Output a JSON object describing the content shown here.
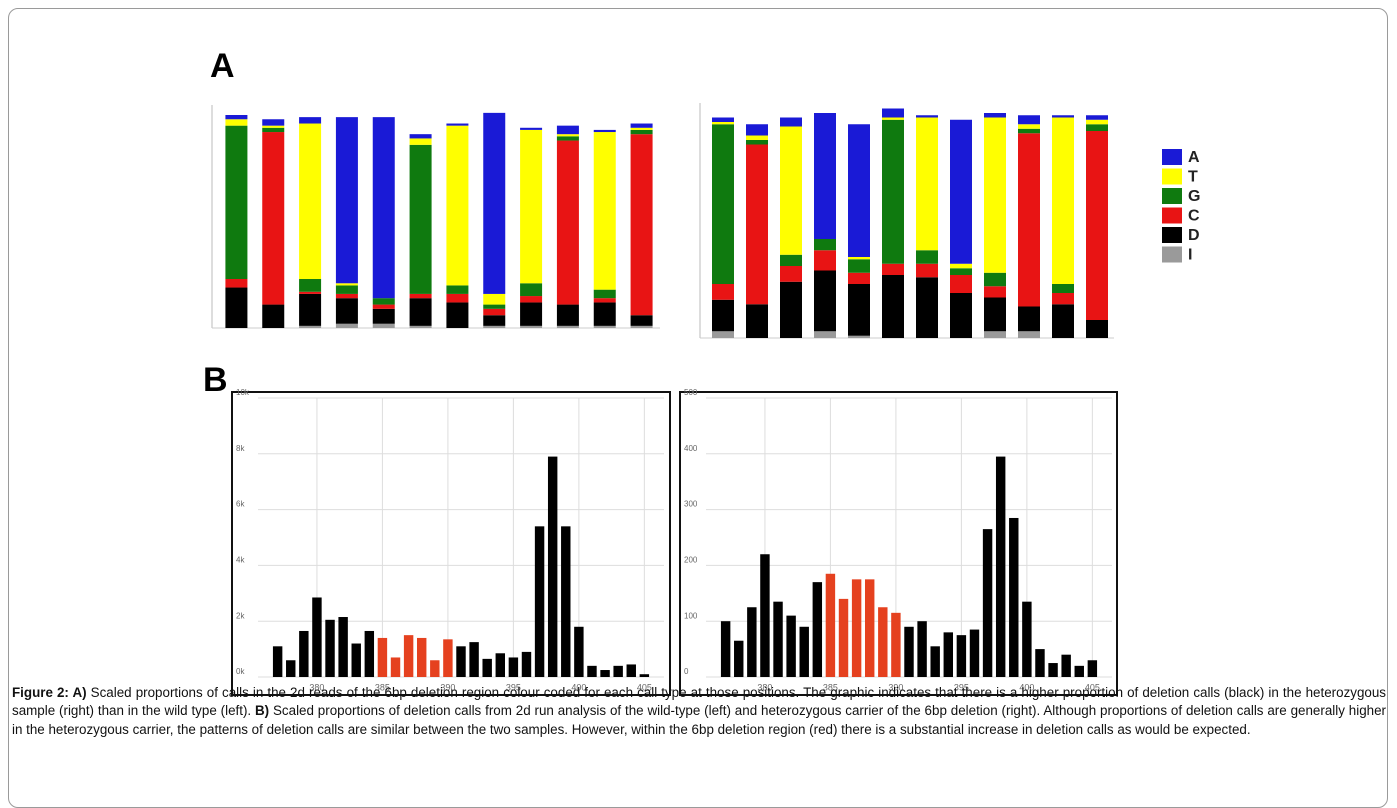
{
  "panel_labels": [
    "A",
    "B"
  ],
  "chart_data": [
    {
      "type": "stacked_bar",
      "categories": [
        null,
        null,
        null,
        null,
        null,
        null,
        null,
        null,
        null,
        null,
        null,
        null
      ],
      "ylim": [
        0,
        1
      ],
      "series": [
        {
          "color": "#1a1ad6",
          "values": [
            0.02,
            0.03,
            0.03,
            0.78,
            0.85,
            0.02,
            0.01,
            0.85,
            0.01,
            0.04,
            0.01,
            0.02
          ]
        },
        {
          "color": "#ffff00",
          "values": [
            0.03,
            0.01,
            0.73,
            0.01,
            0.0,
            0.03,
            0.75,
            0.05,
            0.72,
            0.01,
            0.74,
            0.01
          ]
        },
        {
          "color": "#0f7a0f",
          "values": [
            0.72,
            0.02,
            0.06,
            0.04,
            0.03,
            0.7,
            0.04,
            0.02,
            0.06,
            0.02,
            0.04,
            0.02
          ]
        },
        {
          "color": "#e81414",
          "values": [
            0.04,
            0.81,
            0.01,
            0.02,
            0.02,
            0.02,
            0.04,
            0.03,
            0.03,
            0.77,
            0.02,
            0.85
          ]
        },
        {
          "color": "#000000",
          "values": [
            0.19,
            0.11,
            0.15,
            0.12,
            0.07,
            0.13,
            0.12,
            0.05,
            0.11,
            0.1,
            0.11,
            0.05
          ]
        },
        {
          "color": "#9a9a9a",
          "values": [
            0,
            0,
            0.01,
            0.02,
            0.02,
            0.01,
            0,
            0.01,
            0.01,
            0.01,
            0.01,
            0.01
          ]
        }
      ]
    },
    {
      "type": "stacked_bar",
      "categories": [
        null,
        null,
        null,
        null,
        null,
        null,
        null,
        null,
        null,
        null,
        null,
        null
      ],
      "ylim": [
        0,
        1
      ],
      "legend": true,
      "series": [
        {
          "name": "A",
          "color": "#1a1ad6",
          "values": [
            0.02,
            0.05,
            0.04,
            0.56,
            0.59,
            0.04,
            0.01,
            0.64,
            0.02,
            0.04,
            0.01,
            0.02
          ]
        },
        {
          "name": "T",
          "color": "#ffff00",
          "values": [
            0.01,
            0.02,
            0.57,
            0.0,
            0.01,
            0.01,
            0.59,
            0.02,
            0.69,
            0.02,
            0.74,
            0.02
          ]
        },
        {
          "name": "G",
          "color": "#0f7a0f",
          "values": [
            0.71,
            0.02,
            0.05,
            0.05,
            0.06,
            0.64,
            0.06,
            0.03,
            0.06,
            0.02,
            0.04,
            0.03
          ]
        },
        {
          "name": "C",
          "color": "#e81414",
          "values": [
            0.07,
            0.71,
            0.07,
            0.09,
            0.05,
            0.05,
            0.06,
            0.08,
            0.05,
            0.77,
            0.05,
            0.84
          ]
        },
        {
          "name": "D",
          "color": "#000000",
          "values": [
            0.14,
            0.15,
            0.25,
            0.27,
            0.23,
            0.28,
            0.27,
            0.2,
            0.15,
            0.11,
            0.15,
            0.08
          ]
        },
        {
          "name": "I",
          "color": "#9a9a9a",
          "values": [
            0.03,
            0,
            0,
            0.03,
            0.01,
            0,
            0,
            0,
            0.03,
            0.03,
            0,
            0
          ]
        }
      ]
    },
    {
      "type": "bar",
      "x": [
        377,
        378,
        379,
        380,
        381,
        382,
        383,
        384,
        385,
        386,
        387,
        388,
        389,
        390,
        391,
        392,
        393,
        394,
        395,
        396,
        397,
        398,
        399,
        400,
        401,
        402,
        403,
        404,
        405
      ],
      "values": [
        1100,
        600,
        1650,
        2850,
        2050,
        2150,
        1200,
        1650,
        1400,
        700,
        1500,
        1400,
        600,
        1350,
        1100,
        1250,
        650,
        850,
        700,
        900,
        5400,
        7900,
        5400,
        1800,
        400,
        250,
        400,
        450,
        100
      ],
      "colors": [
        "#000000",
        "#000000",
        "#000000",
        "#000000",
        "#000000",
        "#000000",
        "#000000",
        "#000000",
        "#e5411f",
        "#e5411f",
        "#e5411f",
        "#e5411f",
        "#e5411f",
        "#e5411f",
        "#000000",
        "#000000",
        "#000000",
        "#000000",
        "#000000",
        "#000000",
        "#000000",
        "#000000",
        "#000000",
        "#000000",
        "#000000",
        "#000000",
        "#000000",
        "#000000",
        "#000000"
      ],
      "xlim": [
        375.5,
        406.5
      ],
      "xticks": [
        380,
        385,
        390,
        395,
        400,
        405
      ],
      "ylim": [
        0,
        10000
      ],
      "yticks": [
        {
          "value": 0,
          "label": "0k"
        },
        {
          "value": 2000,
          "label": "2k"
        },
        {
          "value": 4000,
          "label": "4k"
        },
        {
          "value": 6000,
          "label": "6k"
        },
        {
          "value": 8000,
          "label": "8k"
        },
        {
          "value": 10000,
          "label": "10k"
        }
      ],
      "grid": true
    },
    {
      "type": "bar",
      "x": [
        377,
        378,
        379,
        380,
        381,
        382,
        383,
        384,
        385,
        386,
        387,
        388,
        389,
        390,
        391,
        392,
        393,
        394,
        395,
        396,
        397,
        398,
        399,
        400,
        401,
        402,
        403,
        404,
        405
      ],
      "values": [
        100,
        65,
        125,
        220,
        135,
        110,
        90,
        170,
        185,
        140,
        175,
        175,
        125,
        115,
        90,
        100,
        55,
        80,
        75,
        85,
        265,
        395,
        285,
        135,
        50,
        25,
        40,
        20,
        30
      ],
      "colors": [
        "#000000",
        "#000000",
        "#000000",
        "#000000",
        "#000000",
        "#000000",
        "#000000",
        "#000000",
        "#e5411f",
        "#e5411f",
        "#e5411f",
        "#e5411f",
        "#e5411f",
        "#e5411f",
        "#000000",
        "#000000",
        "#000000",
        "#000000",
        "#000000",
        "#000000",
        "#000000",
        "#000000",
        "#000000",
        "#000000",
        "#000000",
        "#000000",
        "#000000",
        "#000000",
        "#000000"
      ],
      "xlim": [
        375.5,
        406.5
      ],
      "xticks": [
        380,
        385,
        390,
        395,
        400,
        405
      ],
      "ylim": [
        0,
        500
      ],
      "yticks": [
        0,
        100,
        200,
        300,
        400,
        500
      ],
      "grid": true
    }
  ],
  "caption": {
    "runs": [
      {
        "text": "Figure 2:  A)",
        "bold": true
      },
      {
        "text": " Scaled proportions of calls in the 2d reads of the 6bp deletion region colour coded for each call type at those positions.  The graphic indicates that there is a higher proportion of deletion calls (black) in the heterozygous sample (right) than in the wild type (left).  "
      },
      {
        "text": "B)",
        "bold": true
      },
      {
        "text": " Scaled proportions of deletion calls from 2d run analysis of the wild-type (left) and heterozygous carrier of the 6bp deletion (right).  Although proportions of deletion calls are generally higher in the heterozygous carrier, the patterns of deletion calls are similar between the two samples.  However, within the 6bp deletion region (red) there is a substantial increase in deletion calls as would be expected."
      }
    ]
  }
}
